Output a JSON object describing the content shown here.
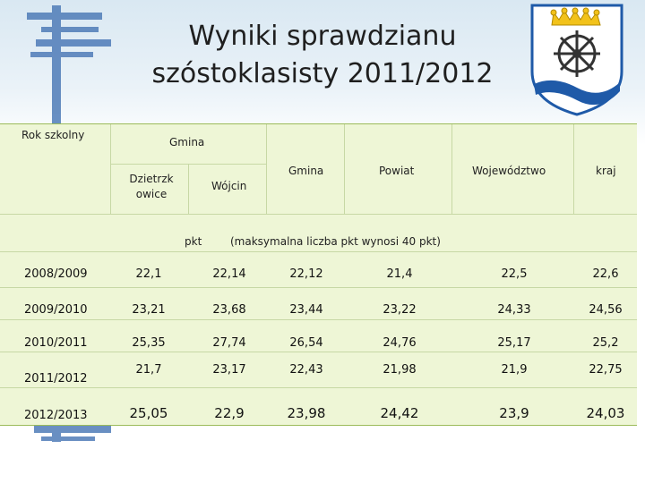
{
  "title": {
    "line1": "Wyniki sprawdzianu",
    "line2": "szóstoklasisty  2011/2012"
  },
  "colors": {
    "table_bg": "#eef6d6",
    "table_border": "#9bbb59",
    "deco_blue": "#4f7cb8",
    "crest_blue": "#1f5aa8",
    "crest_gold": "#f2c21a"
  },
  "table": {
    "header": {
      "school_year": "Rok szkolny",
      "gmina_group": "Gmina",
      "dzietrzkowice": "Dzietrzk owice",
      "wojcin": "Wójcin",
      "gmina": "Gmina",
      "powiat": "Powiat",
      "wojewodztwo": "Województwo",
      "kraj": "kraj",
      "pkt": "pkt",
      "note": "(maksymalna liczba pkt wynosi 40 pkt)"
    },
    "rows": [
      {
        "year": "2008/2009",
        "values": [
          "22,1",
          "22,14",
          "22,12",
          "21,4",
          "22,5",
          "22,6"
        ]
      },
      {
        "year": "2009/2010",
        "values": [
          "23,21",
          "23,68",
          "23,44",
          "23,22",
          "24,33",
          "24,56"
        ]
      },
      {
        "year": "2010/2011",
        "values": [
          "25,35",
          "27,74",
          "26,54",
          "24,76",
          "25,17",
          "25,2"
        ]
      },
      {
        "year": "2011/2012",
        "values": [
          "21,7",
          "23,17",
          "22,43",
          "21,98",
          "21,9",
          "22,75"
        ]
      },
      {
        "year": "2012/2013",
        "values": [
          "25,05",
          "22,9",
          "23,98",
          "24,42",
          "23,9",
          "24,03"
        ]
      }
    ]
  }
}
